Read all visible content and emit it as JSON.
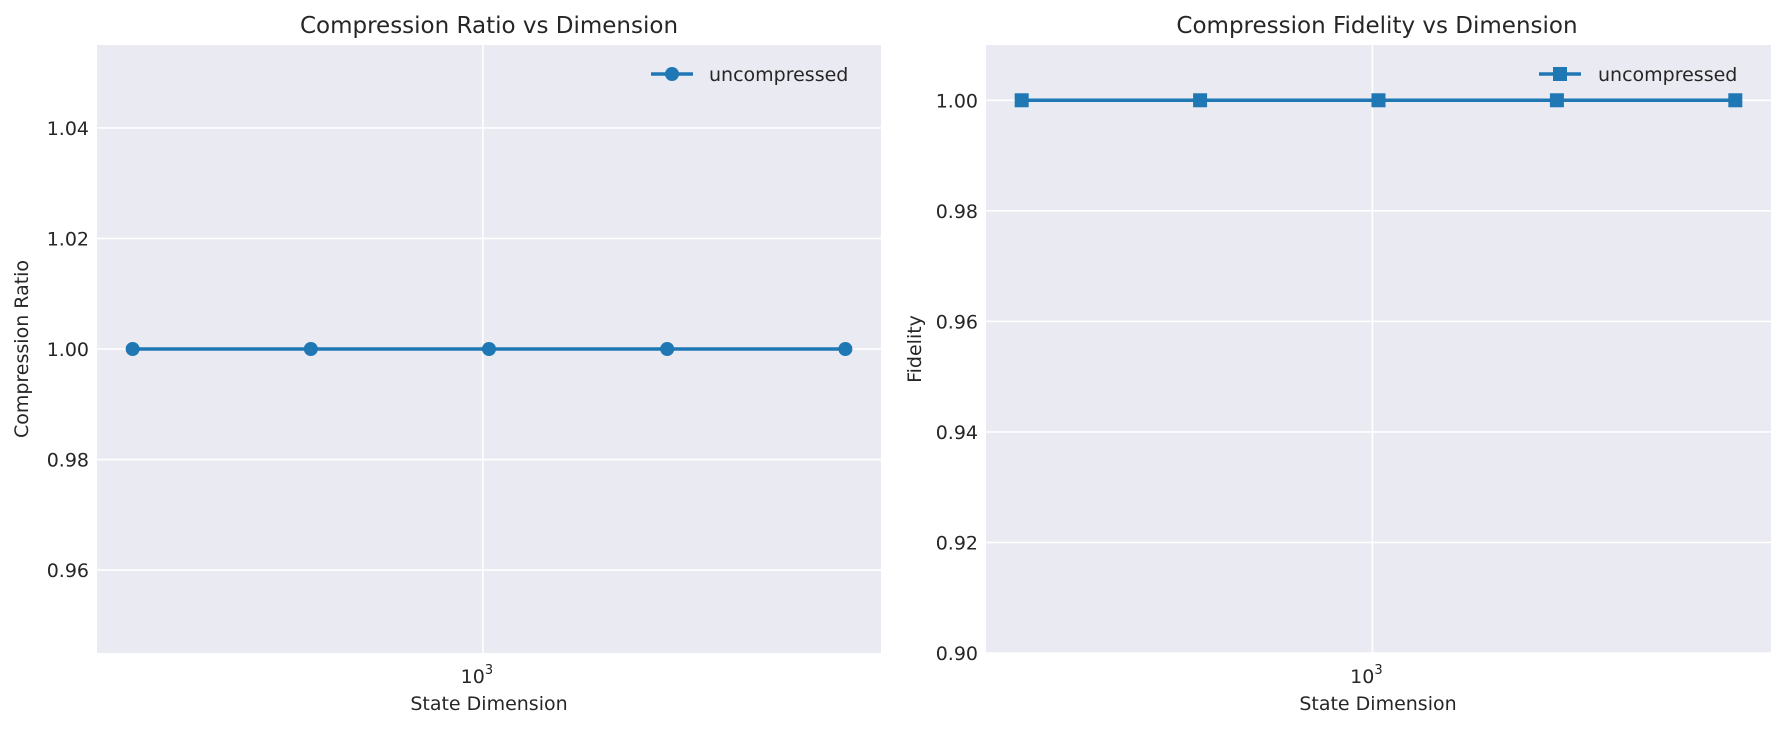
{
  "chart_data": [
    {
      "type": "line",
      "title": "Compression Ratio vs Dimension",
      "xlabel": "State Dimension",
      "ylabel": "Compression Ratio",
      "xscale": "log",
      "x": [
        256,
        512,
        1024,
        2048,
        4096
      ],
      "xticks": [
        {
          "value": 1000,
          "base": "10",
          "exp": "3"
        }
      ],
      "ylim": [
        0.945,
        1.055
      ],
      "yticks": [
        0.96,
        0.98,
        1.0,
        1.02,
        1.04
      ],
      "ytick_labels": [
        "0.96",
        "0.98",
        "1.00",
        "1.02",
        "1.04"
      ],
      "grid": true,
      "legend": "top-right",
      "series": [
        {
          "name": "uncompressed",
          "values": [
            1.0,
            1.0,
            1.0,
            1.0,
            1.0
          ],
          "marker": "circle",
          "color": "#1f77b4"
        }
      ]
    },
    {
      "type": "line",
      "title": "Compression Fidelity vs Dimension",
      "xlabel": "State Dimension",
      "ylabel": "Fidelity",
      "xscale": "log",
      "x": [
        256,
        512,
        1024,
        2048,
        4096
      ],
      "xticks": [
        {
          "value": 1000,
          "base": "10",
          "exp": "3"
        }
      ],
      "ylim": [
        0.9,
        1.01
      ],
      "yticks": [
        0.9,
        0.92,
        0.94,
        0.96,
        0.98,
        1.0
      ],
      "ytick_labels": [
        "0.90",
        "0.92",
        "0.94",
        "0.96",
        "0.98",
        "1.00"
      ],
      "grid": true,
      "legend": "top-right",
      "series": [
        {
          "name": "uncompressed",
          "values": [
            1.0,
            1.0,
            1.0,
            1.0,
            1.0
          ],
          "marker": "square",
          "color": "#1f77b4"
        }
      ]
    }
  ],
  "style": {
    "axes_background": "#eaeaf2",
    "grid_color": "#ffffff",
    "text_color": "#262626"
  }
}
